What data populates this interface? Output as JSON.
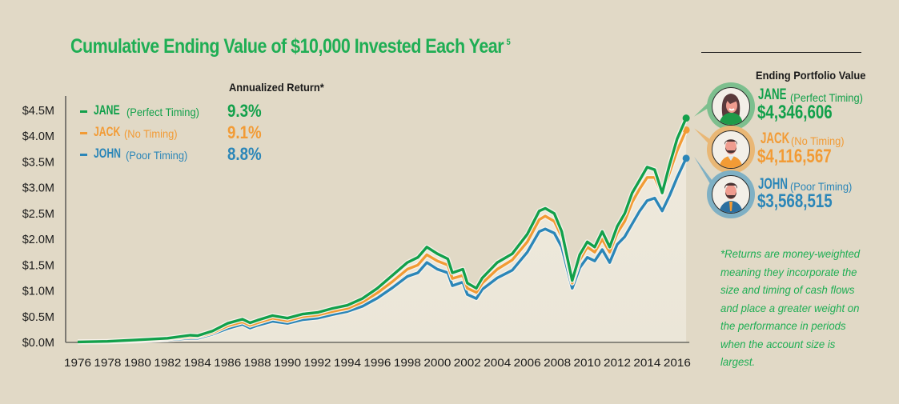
{
  "title": "Cumulative Ending Value of $10,000 Invested Each Year",
  "title_footnote_ref": "5",
  "colors": {
    "background": "#e1d9c6",
    "jane": "#12a04b",
    "jack": "#f29b35",
    "john": "#2b86b8",
    "title": "#1fae54"
  },
  "annualized_return_header": "Annualized Return*",
  "legend": [
    {
      "name": "JANE",
      "desc": "(Perfect Timing)",
      "annualized_return": "9.3%",
      "color": "#12a04b"
    },
    {
      "name": "JACK",
      "desc": "(No Timing)",
      "annualized_return": "9.1%",
      "color": "#f29b35"
    },
    {
      "name": "JOHN",
      "desc": "(Poor Timing)",
      "annualized_return": "8.8%",
      "color": "#2b86b8"
    }
  ],
  "ending_portfolio": {
    "header": "Ending Portfolio Value",
    "people": [
      {
        "name": "JANE",
        "desc": "(Perfect Timing)",
        "value": "$4,346,606",
        "avatar": "woman-avatar-icon"
      },
      {
        "name": "JACK",
        "desc": "(No Timing)",
        "value": "$4,116,567",
        "avatar": "bearded-man-avatar-icon"
      },
      {
        "name": "JOHN",
        "desc": "(Poor Timing)",
        "value": "$3,568,515",
        "avatar": "businessman-avatar-icon"
      }
    ]
  },
  "footnote": "*Returns are money-weighted meaning they incorporate the size and timing of cash flows and place a greater weight on the performance in periods when the account size is largest.",
  "chart_data": {
    "type": "line",
    "title": "Cumulative Ending Value of $10,000 Invested Each Year",
    "xlabel": "",
    "ylabel": "",
    "xlim": [
      1976,
      2016.7
    ],
    "ylim": [
      0,
      4.5
    ],
    "y_unit": "$M",
    "grid": false,
    "legend_position": "top-left",
    "x_ticks": [
      "1976",
      "1978",
      "1980",
      "1982",
      "1984",
      "1986",
      "1988",
      "1990",
      "1992",
      "1994",
      "1996",
      "1998",
      "2000",
      "2002",
      "2004",
      "2006",
      "2008",
      "2010",
      "2012",
      "2014",
      "2016"
    ],
    "y_ticks": [
      "$0.0M",
      "$0.5M",
      "$1.0M",
      "$1.5M",
      "$2.0M",
      "$2.5M",
      "$3.0M",
      "$3.5M",
      "$4.0M",
      "$4.5M"
    ],
    "x": [
      1976,
      1978,
      1980,
      1982,
      1983.5,
      1984,
      1985,
      1986,
      1987,
      1987.5,
      1988,
      1989,
      1990,
      1991,
      1992,
      1993,
      1994,
      1995,
      1996,
      1997,
      1998,
      1998.7,
      1999.3,
      2000,
      2000.7,
      2001,
      2001.7,
      2002,
      2002.6,
      2003,
      2004,
      2005,
      2006,
      2006.8,
      2007.2,
      2007.8,
      2008.3,
      2009,
      2009.5,
      2010,
      2010.5,
      2011,
      2011.5,
      2012,
      2012.5,
      2013,
      2013.5,
      2014,
      2014.5,
      2015,
      2015.5,
      2016,
      2016.6
    ],
    "series": [
      {
        "name": "JANE (Perfect Timing)",
        "annualized_return": 9.3,
        "ending_value": 4346606,
        "values": [
          0.01,
          0.02,
          0.05,
          0.08,
          0.14,
          0.13,
          0.22,
          0.37,
          0.45,
          0.38,
          0.43,
          0.52,
          0.47,
          0.55,
          0.58,
          0.66,
          0.72,
          0.85,
          1.05,
          1.3,
          1.55,
          1.65,
          1.85,
          1.72,
          1.62,
          1.35,
          1.42,
          1.15,
          1.05,
          1.25,
          1.55,
          1.72,
          2.1,
          2.55,
          2.6,
          2.5,
          2.15,
          1.2,
          1.7,
          1.95,
          1.85,
          2.15,
          1.85,
          2.25,
          2.5,
          2.9,
          3.15,
          3.4,
          3.35,
          2.9,
          3.45,
          3.95,
          4.35
        ]
      },
      {
        "name": "JACK (No Timing)",
        "annualized_return": 9.1,
        "ending_value": 4116567,
        "values": [
          0.01,
          0.015,
          0.04,
          0.07,
          0.11,
          0.11,
          0.19,
          0.32,
          0.4,
          0.33,
          0.38,
          0.47,
          0.42,
          0.5,
          0.53,
          0.6,
          0.66,
          0.78,
          0.96,
          1.18,
          1.42,
          1.5,
          1.7,
          1.58,
          1.5,
          1.24,
          1.3,
          1.05,
          0.97,
          1.15,
          1.42,
          1.6,
          1.95,
          2.38,
          2.45,
          2.35,
          2.05,
          1.15,
          1.6,
          1.85,
          1.75,
          2.0,
          1.75,
          2.12,
          2.35,
          2.72,
          2.98,
          3.2,
          3.2,
          2.88,
          3.3,
          3.72,
          4.12
        ]
      },
      {
        "name": "JOHN (Poor Timing)",
        "annualized_return": 8.8,
        "ending_value": 3568515,
        "values": [
          0.01,
          0.01,
          0.03,
          0.05,
          0.08,
          0.08,
          0.16,
          0.27,
          0.35,
          0.28,
          0.33,
          0.41,
          0.37,
          0.44,
          0.47,
          0.54,
          0.6,
          0.7,
          0.86,
          1.06,
          1.28,
          1.35,
          1.55,
          1.42,
          1.35,
          1.1,
          1.17,
          0.93,
          0.85,
          1.03,
          1.25,
          1.4,
          1.75,
          2.15,
          2.2,
          2.12,
          1.85,
          1.05,
          1.45,
          1.65,
          1.58,
          1.8,
          1.55,
          1.9,
          2.05,
          2.3,
          2.55,
          2.75,
          2.8,
          2.55,
          2.85,
          3.2,
          3.57
        ]
      }
    ]
  }
}
